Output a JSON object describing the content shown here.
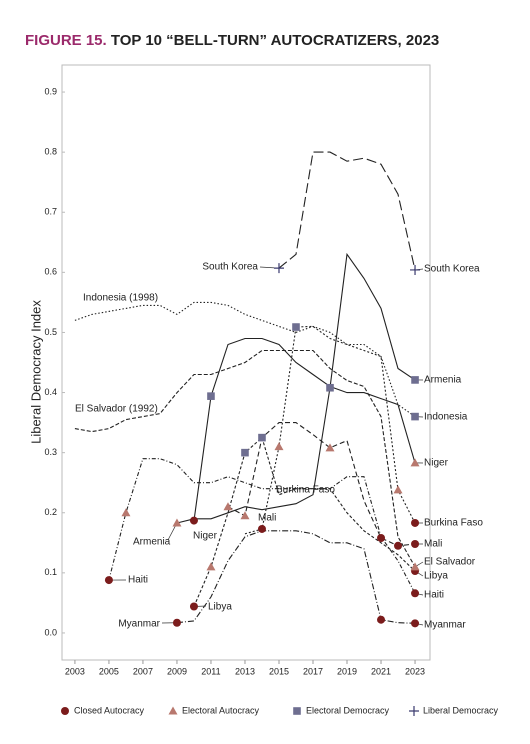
{
  "chart_data": {
    "type": "line",
    "figure_label": "FIGURE 15.",
    "title": "TOP 10 “BELL-TURN” AUTOCRATIZERS, 2023",
    "ylabel": "Liberal Democracy Index",
    "xlim": [
      2002.24,
      2023.88
    ],
    "ylim": [
      -0.045,
      0.945
    ],
    "xticks": [
      2003,
      2005,
      2007,
      2009,
      2011,
      2013,
      2015,
      2017,
      2019,
      2021,
      2023
    ],
    "yticks": [
      {
        "value": 0,
        "label": "0.0"
      },
      0.1,
      0.2,
      0.3,
      0.4,
      0.5,
      0.6,
      0.7,
      0.8,
      0.9
    ],
    "annotations": [
      "Indonesia (1998)",
      "El Salvador (1992)"
    ],
    "series": [
      {
        "name": "South Korea",
        "color": "#222222",
        "dash": "10,4",
        "x": [
          2015,
          2016,
          2017,
          2018,
          2019,
          2020,
          2021,
          2022,
          2023
        ],
        "values": [
          0.607,
          0.63,
          0.8,
          0.8,
          0.785,
          0.79,
          0.78,
          0.73,
          0.604
        ]
      },
      {
        "name": "Armenia",
        "color": "#222222",
        "dash": "none",
        "x": [
          2009,
          2010,
          2011,
          2012,
          2013,
          2014,
          2015,
          2016,
          2017,
          2018,
          2019,
          2020,
          2021,
          2022,
          2023
        ],
        "values": [
          0.183,
          0.19,
          0.19,
          0.2,
          0.21,
          0.205,
          0.21,
          0.215,
          0.23,
          0.408,
          0.63,
          0.59,
          0.54,
          0.44,
          0.421
        ]
      },
      {
        "name": "Indonesia",
        "color": "#222222",
        "dash": "1.5,2",
        "x": [
          2003,
          2004,
          2005,
          2006,
          2007,
          2008,
          2009,
          2010,
          2011,
          2012,
          2013,
          2014,
          2015,
          2016,
          2017,
          2018,
          2019,
          2020,
          2021,
          2022,
          2023
        ],
        "values": [
          0.52,
          0.53,
          0.535,
          0.54,
          0.545,
          0.545,
          0.53,
          0.55,
          0.55,
          0.545,
          0.53,
          0.52,
          0.51,
          0.5,
          0.51,
          0.5,
          0.48,
          0.48,
          0.46,
          0.38,
          0.36
        ]
      },
      {
        "name": "Niger",
        "color": "#222222",
        "dash": "none",
        "x": [
          2010,
          2011,
          2012,
          2013,
          2014,
          2015,
          2016,
          2017,
          2018,
          2019,
          2020,
          2021,
          2022,
          2023
        ],
        "values": [
          0.187,
          0.394,
          0.48,
          0.49,
          0.49,
          0.48,
          0.45,
          0.43,
          0.41,
          0.4,
          0.4,
          0.39,
          0.38,
          0.283
        ]
      },
      {
        "name": "Burkina Faso",
        "color": "#222222",
        "dash": "2,2",
        "x": [
          2013,
          2014,
          2015,
          2016,
          2017,
          2018,
          2019,
          2020,
          2021,
          2022,
          2023
        ],
        "values": [
          0.165,
          0.173,
          0.31,
          0.509,
          0.51,
          0.49,
          0.48,
          0.47,
          0.46,
          0.238,
          0.183
        ]
      },
      {
        "name": "Mali",
        "color": "#222222",
        "dash": "5,3",
        "x": [
          2012,
          2013,
          2014,
          2015,
          2016,
          2017,
          2018,
          2019,
          2020,
          2021,
          2022,
          2023
        ],
        "values": [
          0.21,
          0.195,
          0.325,
          0.35,
          0.35,
          0.33,
          0.308,
          0.32,
          0.22,
          0.158,
          0.145,
          0.148
        ]
      },
      {
        "name": "El Salvador",
        "color": "#222222",
        "dash": "4,2",
        "x": [
          2003,
          2004,
          2005,
          2006,
          2007,
          2008,
          2009,
          2010,
          2011,
          2012,
          2013,
          2014,
          2015,
          2016,
          2017,
          2018,
          2019,
          2020,
          2021,
          2022,
          2023
        ],
        "values": [
          0.34,
          0.335,
          0.34,
          0.355,
          0.36,
          0.365,
          0.4,
          0.43,
          0.43,
          0.44,
          0.45,
          0.47,
          0.47,
          0.47,
          0.47,
          0.44,
          0.42,
          0.41,
          0.36,
          0.16,
          0.11
        ]
      },
      {
        "name": "Libya",
        "color": "#222222",
        "dash": "3,2",
        "x": [
          2010,
          2011,
          2012,
          2013,
          2014,
          2015,
          2016,
          2017,
          2018,
          2019,
          2020,
          2021,
          2022,
          2023
        ],
        "values": [
          0.044,
          0.11,
          0.2,
          0.3,
          0.325,
          0.23,
          0.24,
          0.24,
          0.24,
          0.2,
          0.17,
          0.15,
          0.13,
          0.103
        ]
      },
      {
        "name": "Haiti",
        "color": "#222222",
        "dash": "4,2,1,2",
        "x": [
          2005,
          2006,
          2007,
          2008,
          2009,
          2010,
          2011,
          2012,
          2013,
          2014,
          2015,
          2016,
          2017,
          2018,
          2019,
          2020,
          2021,
          2022,
          2023
        ],
        "values": [
          0.088,
          0.2,
          0.29,
          0.29,
          0.28,
          0.25,
          0.25,
          0.26,
          0.25,
          0.24,
          0.24,
          0.24,
          0.24,
          0.24,
          0.26,
          0.26,
          0.16,
          0.12,
          0.066
        ]
      },
      {
        "name": "Myanmar",
        "color": "#222222",
        "dash": "6,2,1,2",
        "x": [
          2009,
          2010,
          2011,
          2012,
          2013,
          2014,
          2015,
          2016,
          2017,
          2018,
          2019,
          2020,
          2021,
          2022,
          2023
        ],
        "values": [
          0.017,
          0.02,
          0.06,
          0.12,
          0.16,
          0.17,
          0.17,
          0.17,
          0.165,
          0.15,
          0.15,
          0.14,
          0.022,
          0.017,
          0.016
        ]
      }
    ],
    "markers": [
      {
        "name": "Closed Autocracy",
        "shape": "circle",
        "color": "#7b1c1c",
        "x": [
          2005,
          2009,
          2010,
          2010,
          2014,
          2021,
          2021,
          2022,
          2023,
          2023,
          2023,
          2023,
          2023
        ],
        "values": [
          0.088,
          0.017,
          0.044,
          0.187,
          0.173,
          0.158,
          0.022,
          0.145,
          0.183,
          0.148,
          0.103,
          0.066,
          0.016
        ]
      },
      {
        "name": "Electoral Autocracy",
        "shape": "triangle",
        "color": "#b8786e",
        "x": [
          2006,
          2009,
          2011,
          2012,
          2013,
          2015,
          2018,
          2022,
          2023,
          2023
        ],
        "values": [
          0.2,
          0.183,
          0.11,
          0.21,
          0.195,
          0.31,
          0.308,
          0.238,
          0.283,
          0.11
        ]
      },
      {
        "name": "Electoral Democracy",
        "shape": "square",
        "color": "#6e6e90",
        "x": [
          2011,
          2013,
          2014,
          2016,
          2018,
          2023,
          2023
        ],
        "values": [
          0.394,
          0.3,
          0.325,
          0.509,
          0.408,
          0.421,
          0.36
        ]
      },
      {
        "name": "Liberal Democracy",
        "shape": "plus",
        "color": "#3a3a6e",
        "x": [
          2015,
          2023
        ],
        "values": [
          0.607,
          0.604
        ]
      }
    ]
  }
}
